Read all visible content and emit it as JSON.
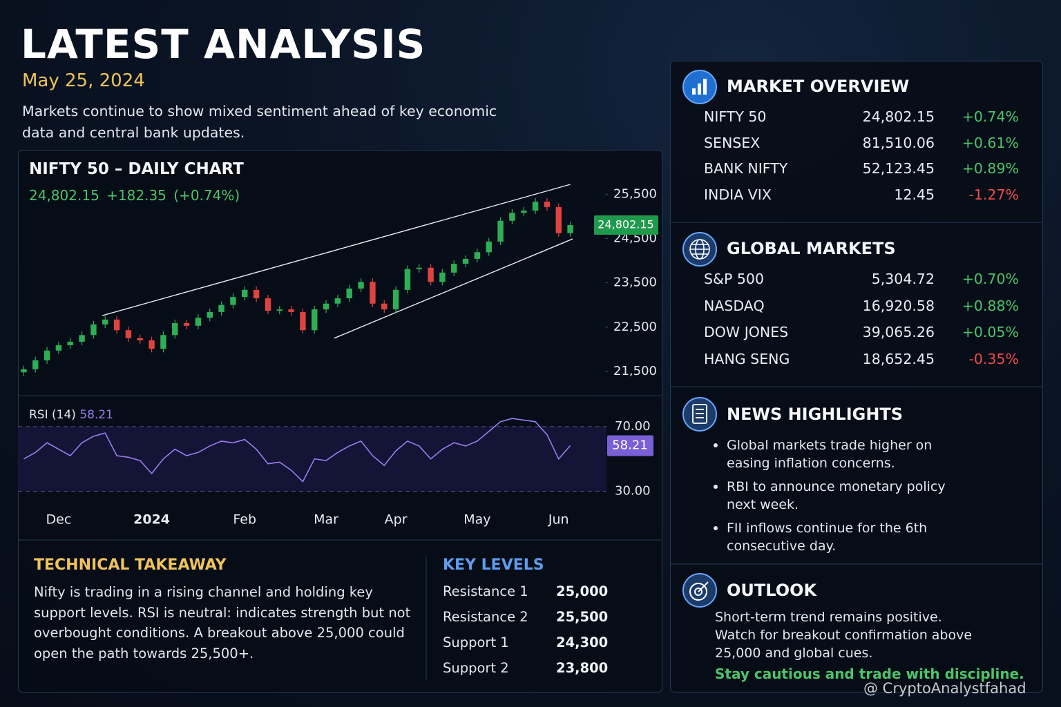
{
  "header": {
    "title": "LATEST ANALYSIS",
    "date": "May 25, 2024",
    "description": "Markets continue to show mixed sentiment ahead of key economic data and central bank updates."
  },
  "chart_data": {
    "type": "candlestick",
    "title": "NIFTY 50 – DAILY CHART",
    "price": "24,802.15",
    "change": "+182.35 (+0.74%)",
    "up_color": "#2fae55",
    "down_color": "#e0433f",
    "x": [
      0,
      1,
      2,
      3,
      4,
      5,
      6,
      7,
      8,
      9,
      10,
      11,
      12,
      13,
      14,
      15,
      16,
      17,
      18,
      19,
      20,
      21,
      22,
      23,
      24,
      25,
      26,
      27,
      28,
      29,
      30,
      31,
      32,
      33,
      34,
      35,
      36,
      37,
      38,
      39,
      40,
      41,
      42,
      43,
      44,
      45,
      46,
      47
    ],
    "open": [
      21480,
      21550,
      21750,
      21970,
      22090,
      22170,
      22320,
      22560,
      22670,
      22430,
      22250,
      22200,
      22010,
      22320,
      22590,
      22530,
      22710,
      22840,
      23000,
      23180,
      23340,
      23150,
      22870,
      22900,
      22840,
      22430,
      22900,
      23030,
      23150,
      23370,
      23520,
      23030,
      22900,
      23340,
      23810,
      23840,
      23520,
      23730,
      23930,
      24040,
      24190,
      24430,
      24900,
      25080,
      25130,
      25330,
      25210,
      24620
    ],
    "high": [
      21630,
      21830,
      22050,
      22170,
      22250,
      22400,
      22640,
      22750,
      22750,
      22510,
      22330,
      22280,
      22400,
      22670,
      22670,
      22790,
      22920,
      23080,
      23260,
      23420,
      23420,
      23230,
      22980,
      22980,
      22920,
      22980,
      23110,
      23230,
      23450,
      23600,
      23600,
      23110,
      23420,
      23890,
      23920,
      23920,
      23810,
      24010,
      24120,
      24270,
      24510,
      24980,
      25160,
      25210,
      25410,
      25410,
      25290,
      24880
    ],
    "low": [
      21400,
      21470,
      21670,
      21890,
      22010,
      22090,
      22240,
      22480,
      22350,
      22170,
      22120,
      21930,
      21930,
      22240,
      22450,
      22450,
      22630,
      22760,
      22920,
      23100,
      23070,
      22790,
      22790,
      22760,
      22350,
      22350,
      22820,
      22950,
      23070,
      23290,
      22950,
      22820,
      22820,
      23260,
      23730,
      23440,
      23440,
      23650,
      23850,
      23960,
      24110,
      24350,
      24820,
      25000,
      25050,
      25130,
      24540,
      24540
    ],
    "close": [
      21550,
      21750,
      21970,
      22090,
      22170,
      22320,
      22560,
      22670,
      22430,
      22250,
      22200,
      22010,
      22320,
      22590,
      22530,
      22710,
      22840,
      23000,
      23180,
      23340,
      23150,
      22870,
      22900,
      22840,
      22430,
      22900,
      23030,
      23150,
      23370,
      23520,
      23030,
      22900,
      23340,
      23810,
      23840,
      23520,
      23730,
      23930,
      24040,
      24190,
      24430,
      24900,
      25080,
      25130,
      25330,
      25210,
      24620,
      24802.15
    ],
    "xlim": [
      -0.5,
      47.5
    ],
    "xticks": [
      {
        "value": 3,
        "label": "Dec"
      },
      {
        "value": 11,
        "label": "2024"
      },
      {
        "value": 19,
        "label": "Feb"
      },
      {
        "value": 26,
        "label": "Mar"
      },
      {
        "value": 32,
        "label": "Apr"
      },
      {
        "value": 39,
        "label": "May"
      },
      {
        "value": 46,
        "label": "Jun"
      }
    ],
    "ylim": [
      21000,
      25800
    ],
    "yticks": [
      {
        "value": 21500,
        "label": "21,500"
      },
      {
        "value": 22500,
        "label": "22,500"
      },
      {
        "value": 23500,
        "label": "23,500"
      },
      {
        "value": 24500,
        "label": "24,500"
      },
      {
        "value": 25500,
        "label": "25,500"
      }
    ],
    "channel": [
      {
        "x": [
          6.75,
          47
        ],
        "y": [
          22760,
          25720
        ]
      },
      {
        "x": [
          26.7,
          47.2
        ],
        "y": [
          22250,
          24490
        ]
      }
    ],
    "rsi": {
      "name": "RSI (14)",
      "color": "#9b7cf0",
      "values": [
        50,
        54,
        60,
        56,
        52,
        60,
        64,
        66,
        52,
        51,
        49,
        41,
        50,
        56,
        52,
        54,
        58,
        61,
        60,
        62,
        56,
        47,
        48,
        43,
        36,
        50,
        49,
        54,
        58,
        61,
        52,
        46,
        55,
        61,
        58,
        50,
        56,
        60,
        58,
        61,
        67,
        73,
        75,
        74,
        73,
        65,
        50,
        58.21
      ],
      "ylim": [
        20,
        84
      ],
      "yticks": [
        {
          "value": 30,
          "label": "30.00"
        },
        {
          "value": 70,
          "label": "70.00"
        }
      ]
    }
  },
  "takeaway": {
    "title": "TECHNICAL TAKEAWAY",
    "text": "Nifty is trading in a rising channel and holding key support levels. RSI is neutral: indicates strength but not overbought conditions. A breakout above 25,000 could open the path towards 25,500+."
  },
  "key_levels": {
    "title": "KEY LEVELS",
    "rows": [
      [
        "Resistance 1",
        "25,000"
      ],
      [
        "Resistance 2",
        "25,500"
      ],
      [
        "Support 1",
        "24,300"
      ],
      [
        "Support 2",
        "23,800"
      ]
    ]
  },
  "market_overview": {
    "title": "MARKET OVERVIEW",
    "rows": [
      [
        "NIFTY 50",
        "24,802.15",
        "+0.74%"
      ],
      [
        "SENSEX",
        "81,510.06",
        "+0.61%"
      ],
      [
        "BANK NIFTY",
        "52,123.45",
        "+0.89%"
      ],
      [
        "INDIA VIX",
        "12.45",
        "-1.27%"
      ]
    ]
  },
  "global_markets": {
    "title": "GLOBAL MARKETS",
    "rows": [
      [
        "S&P 500",
        "5,304.72",
        "+0.70%"
      ],
      [
        "NASDAQ",
        "16,920.58",
        "+0.88%"
      ],
      [
        "DOW JONES",
        "39,065.26",
        "+0.05%"
      ],
      [
        "HANG SENG",
        "18,652.45",
        "-0.35%"
      ]
    ]
  },
  "news": {
    "title": "NEWS HIGHLIGHTS",
    "items": [
      "Global markets trade higher on easing inflation concerns.",
      "RBI to announce monetary policy next week.",
      "FII inflows continue for the 6th consecutive day."
    ]
  },
  "outlook": {
    "title": "OUTLOOK",
    "text": "Short-term trend remains positive. Watch for breakout confirmation above 25,000 and global cues.",
    "note": "Stay cautious and trade with discipline."
  },
  "watermark": "@ CryptoAnalystfahad"
}
